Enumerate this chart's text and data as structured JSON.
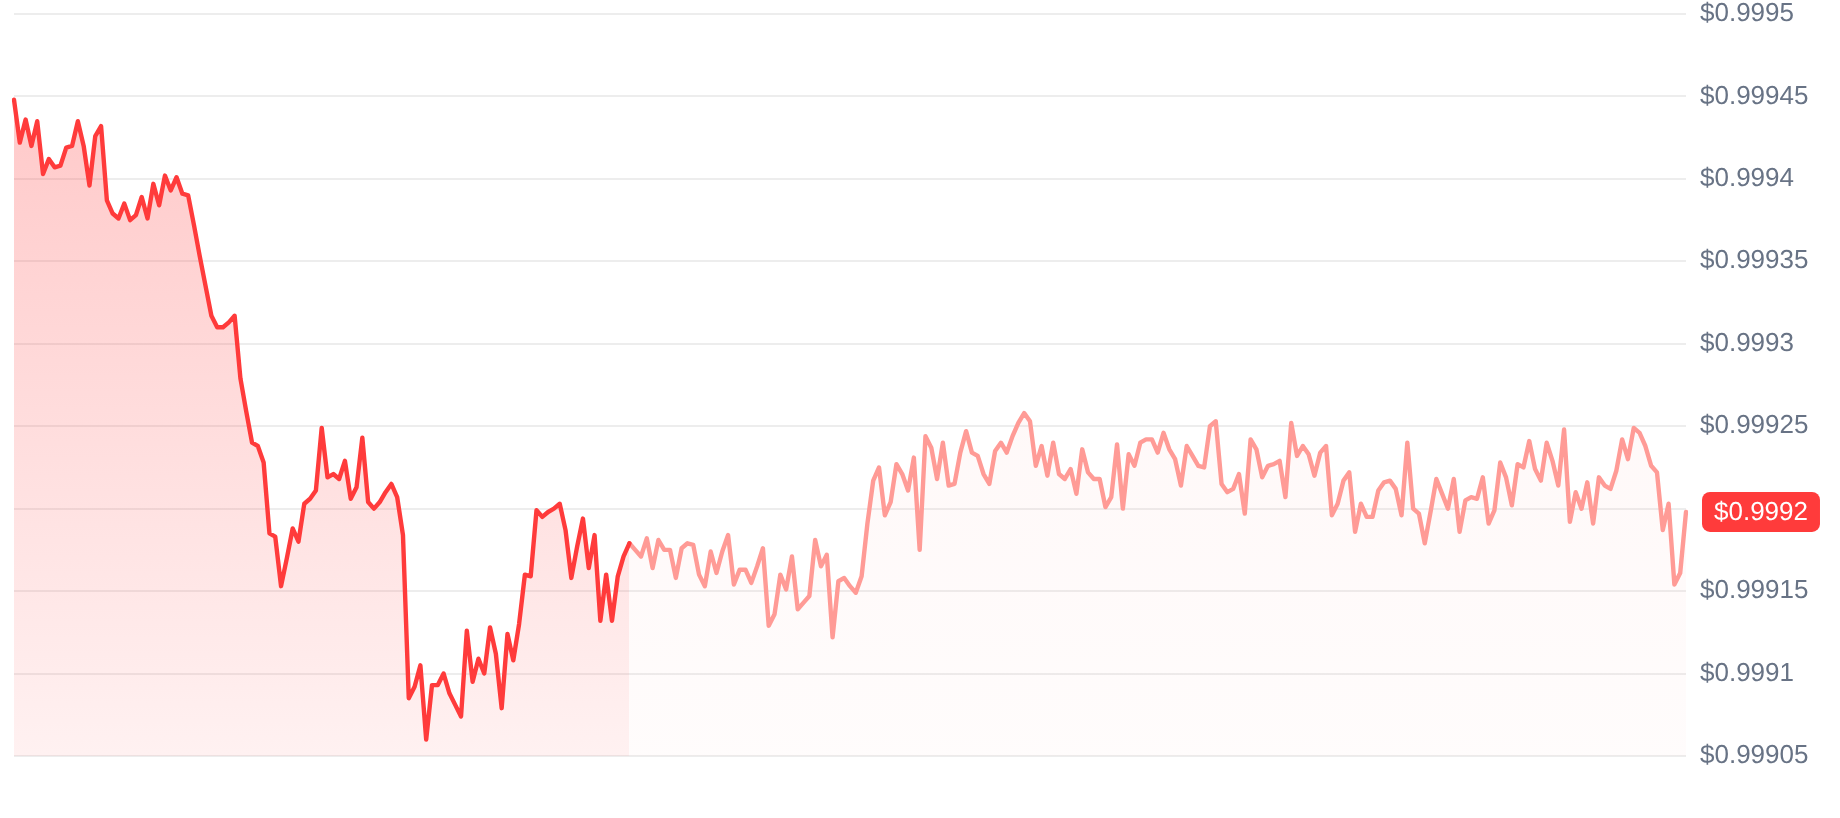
{
  "chart_data": {
    "type": "area",
    "categories": [
      null,
      null,
      null,
      null,
      null,
      null,
      null,
      null,
      null,
      null,
      null,
      null,
      null,
      null,
      null,
      null,
      null,
      null,
      null,
      null,
      null,
      null,
      null,
      null,
      null,
      null,
      null,
      null,
      null,
      null,
      null,
      null,
      null,
      null,
      null,
      null,
      null,
      null,
      null,
      null,
      null,
      null,
      null,
      null,
      null,
      null,
      null,
      null,
      null,
      null,
      null,
      null,
      null,
      null,
      null,
      null,
      null,
      null,
      null,
      null,
      null,
      null,
      null,
      null,
      null,
      null,
      null,
      null,
      null,
      null,
      null,
      null,
      null,
      null,
      null,
      null,
      null,
      null,
      null,
      null,
      null,
      null,
      null,
      null,
      null,
      null,
      null,
      null,
      null,
      null,
      null,
      null,
      null,
      null,
      null,
      null,
      null,
      null,
      null,
      null,
      null,
      null,
      null,
      null,
      null,
      null,
      null,
      null,
      null,
      null,
      null,
      null,
      null,
      null,
      null,
      null,
      null,
      null,
      null,
      null,
      null,
      null,
      null,
      null,
      null,
      null,
      null,
      null,
      null,
      null,
      null,
      null,
      null,
      null,
      null,
      null,
      null,
      null,
      null,
      null,
      null,
      null,
      null,
      null,
      null,
      null,
      null,
      null,
      null,
      null,
      null,
      null,
      null,
      null,
      null,
      null,
      null,
      null,
      null,
      null,
      null,
      null,
      null,
      null,
      null,
      null,
      null,
      null,
      null,
      null,
      null,
      null,
      null,
      null,
      null,
      null,
      null,
      null,
      null,
      null,
      null,
      null,
      null,
      null,
      null,
      null,
      null,
      null,
      null,
      null,
      null,
      null,
      null,
      null,
      null,
      null,
      null,
      null,
      null,
      null,
      null,
      null,
      null,
      null,
      null,
      null,
      null,
      null,
      null,
      null,
      null,
      null,
      null,
      null,
      null,
      null,
      null,
      null,
      null,
      null,
      null,
      null,
      null,
      null,
      null,
      null,
      null,
      null,
      null,
      null,
      null,
      null,
      null,
      null,
      null,
      null,
      null,
      null,
      null,
      null,
      null,
      null,
      null,
      null,
      null,
      null,
      null,
      null,
      null,
      null,
      null,
      null,
      null,
      null,
      null,
      null,
      null,
      null,
      null,
      null,
      null,
      null,
      null,
      null,
      null,
      null,
      null,
      null,
      null,
      null,
      null,
      null,
      null,
      null,
      null,
      null,
      null,
      null,
      null,
      null,
      null,
      null,
      null,
      null,
      null,
      null,
      null,
      null,
      null
    ],
    "series": [
      {
        "color": "#ff3b3b",
        "values": [
          0.999448,
          0.999422,
          0.999436,
          0.99942,
          0.999435,
          0.999403,
          0.999412,
          0.999407,
          0.999408,
          0.999419,
          0.99942,
          0.999435,
          0.99942,
          0.999396,
          0.999426,
          0.999432,
          0.999387,
          0.999379,
          0.999376,
          0.999385,
          0.999375,
          0.999378,
          0.999389,
          0.999376,
          0.999397,
          0.999384,
          0.999402,
          0.999393,
          0.999401,
          0.999391,
          0.99939,
          0.999372,
          0.999353,
          0.999335,
          0.999317,
          0.99931,
          0.99931,
          0.999313,
          0.999317,
          0.999279,
          0.999259,
          0.99924,
          0.999238,
          0.999228,
          0.999185,
          0.999183,
          0.999153,
          0.99917,
          0.999188,
          0.99918,
          0.999203,
          0.999206,
          0.999211,
          0.999249,
          0.999219,
          0.999221,
          0.999218,
          0.999229,
          0.999206,
          0.999213,
          0.999243,
          0.999204,
          0.9992,
          0.999204,
          0.99921,
          0.999215,
          0.999207,
          0.999184,
          0.999085,
          0.999092,
          0.999105,
          0.99906,
          0.999093,
          0.999093,
          0.9991,
          0.999088,
          0.999081,
          0.999074,
          0.999126,
          0.999095,
          0.999109,
          0.9991,
          0.999128,
          0.999112,
          0.999079,
          0.999124,
          0.999108,
          0.99913,
          0.99916,
          0.999159,
          0.999199,
          0.999195,
          0.999198,
          0.9992,
          0.999203,
          0.999187,
          0.999158,
          0.999177,
          0.999194,
          0.999164,
          0.999184,
          0.999132,
          0.99916,
          0.999132,
          0.999159,
          0.999171,
          0.999179,
          null,
          null,
          null,
          null,
          null,
          null,
          null,
          null,
          null,
          null,
          null,
          null,
          null,
          null,
          null,
          null,
          null,
          null,
          null,
          null,
          null,
          null,
          null,
          null,
          null,
          null,
          null,
          null,
          null,
          null,
          null,
          null,
          null,
          null,
          null,
          null,
          null,
          null,
          null,
          null,
          null,
          null,
          null,
          null,
          null,
          null,
          null,
          null,
          null,
          null,
          null,
          null,
          null,
          null,
          null,
          null,
          null,
          null,
          null,
          null,
          null,
          null,
          null,
          null,
          null,
          null,
          null,
          null,
          null,
          null,
          null,
          null,
          null,
          null,
          null,
          null,
          null,
          null,
          null,
          null,
          null,
          null,
          null,
          null,
          null,
          null,
          null,
          null,
          null,
          null,
          null,
          null,
          null,
          null,
          null,
          null,
          null,
          null,
          null,
          null,
          null,
          null,
          null,
          null,
          null,
          null,
          null,
          null,
          null,
          null,
          null,
          null,
          null,
          null,
          null,
          null,
          null,
          null,
          null,
          null,
          null,
          null,
          null,
          null,
          null,
          null,
          null,
          null,
          null,
          null,
          null,
          null,
          null,
          null,
          null,
          null,
          null,
          null,
          null,
          null,
          null,
          null,
          null,
          null,
          null,
          null,
          null,
          null,
          null,
          null,
          null,
          null,
          null,
          null,
          null,
          null,
          null,
          null,
          null,
          null,
          null,
          null,
          null,
          null,
          null,
          null,
          null,
          null,
          null,
          null,
          null,
          null,
          null,
          null,
          null,
          null,
          null,
          null,
          null,
          null,
          null,
          null
        ]
      },
      {
        "color": "#ff9b96",
        "values": [
          null,
          null,
          null,
          null,
          null,
          null,
          null,
          null,
          null,
          null,
          null,
          null,
          null,
          null,
          null,
          null,
          null,
          null,
          null,
          null,
          null,
          null,
          null,
          null,
          null,
          null,
          null,
          null,
          null,
          null,
          null,
          null,
          null,
          null,
          null,
          null,
          null,
          null,
          null,
          null,
          null,
          null,
          null,
          null,
          null,
          null,
          null,
          null,
          null,
          null,
          null,
          null,
          null,
          null,
          null,
          null,
          null,
          null,
          null,
          null,
          null,
          null,
          null,
          null,
          null,
          null,
          null,
          null,
          null,
          null,
          null,
          null,
          null,
          null,
          null,
          null,
          null,
          null,
          null,
          null,
          null,
          null,
          null,
          null,
          null,
          null,
          null,
          null,
          null,
          null,
          null,
          null,
          null,
          null,
          null,
          null,
          null,
          null,
          null,
          null,
          null,
          null,
          null,
          null,
          null,
          null,
          0.999179,
          0.999175,
          0.999171,
          0.999182,
          0.999164,
          0.999181,
          0.999175,
          0.999175,
          0.999158,
          0.999176,
          0.999179,
          0.999178,
          0.99916,
          0.999153,
          0.999174,
          0.999161,
          0.999174,
          0.999184,
          0.999154,
          0.999163,
          0.999163,
          0.999155,
          0.999165,
          0.999176,
          0.999129,
          0.999136,
          0.99916,
          0.999151,
          0.999171,
          0.999139,
          0.999143,
          0.999147,
          0.999181,
          0.999165,
          0.999172,
          0.999122,
          0.999156,
          0.999158,
          0.999153,
          0.999149,
          0.999159,
          0.999191,
          0.999217,
          0.999225,
          0.999196,
          0.999204,
          0.999227,
          0.999221,
          0.999211,
          0.999231,
          0.999175,
          0.999244,
          0.999237,
          0.999218,
          0.99924,
          0.999214,
          0.999215,
          0.999234,
          0.999247,
          0.999234,
          0.999232,
          0.999221,
          0.999215,
          0.999235,
          0.99924,
          0.999234,
          0.999244,
          0.999252,
          0.999258,
          0.999253,
          0.999226,
          0.999238,
          0.99922,
          0.99924,
          0.999221,
          0.999218,
          0.999224,
          0.999209,
          0.999236,
          0.999222,
          0.999218,
          0.999218,
          0.999201,
          0.999207,
          0.999239,
          0.9992,
          0.999233,
          0.999226,
          0.99924,
          0.999242,
          0.999242,
          0.999234,
          0.999246,
          0.999236,
          0.99923,
          0.999214,
          0.999238,
          0.999232,
          0.999226,
          0.999225,
          0.99925,
          0.999253,
          0.999215,
          0.99921,
          0.999212,
          0.999221,
          0.999197,
          0.999242,
          0.999236,
          0.999219,
          0.999226,
          0.999227,
          0.999229,
          0.999207,
          0.999252,
          0.999232,
          0.999238,
          0.999233,
          0.99922,
          0.999234,
          0.999238,
          0.999196,
          0.999203,
          0.999217,
          0.999222,
          0.999186,
          0.999203,
          0.999195,
          0.999195,
          0.999211,
          0.999216,
          0.999217,
          0.999212,
          0.999196,
          0.99924,
          0.9992,
          0.999197,
          0.999179,
          0.999198,
          0.999218,
          0.999209,
          0.9992,
          0.999218,
          0.999186,
          0.999205,
          0.999207,
          0.999206,
          0.999219,
          0.999191,
          0.999199,
          0.999228,
          0.999219,
          0.999202,
          0.999227,
          0.999225,
          0.999241,
          0.999224,
          0.999217,
          0.99924,
          0.999229,
          0.999214,
          0.999248,
          0.999192,
          0.99921,
          0.9992,
          0.999216,
          0.999191,
          0.999219,
          0.999214,
          0.999212,
          0.999223,
          0.999242,
          0.99923,
          0.999249,
          0.999246,
          0.999238,
          0.999226,
          0.999222,
          0.999187,
          0.999203,
          0.999154,
          0.999161,
          0.999198
        ]
      }
    ],
    "ylim": [
      0.99905,
      0.9995
    ],
    "yticks": [
      {
        "value": 0.99905,
        "label": "$0.99905"
      },
      {
        "value": 0.9991,
        "label": "$0.9991"
      },
      {
        "value": 0.99915,
        "label": "$0.99915"
      },
      {
        "value": 0.9992,
        "label": null
      },
      {
        "value": 0.99925,
        "label": "$0.99925"
      },
      {
        "value": 0.9993,
        "label": "$0.9993"
      },
      {
        "value": 0.99935,
        "label": "$0.99935"
      },
      {
        "value": 0.9994,
        "label": "$0.9994"
      },
      {
        "value": 0.99945,
        "label": "$0.99945"
      },
      {
        "value": 0.9995,
        "label": "$0.9995"
      }
    ],
    "grid": "y",
    "tick_labels": "y",
    "annotations": [
      "$0.9992"
    ]
  }
}
